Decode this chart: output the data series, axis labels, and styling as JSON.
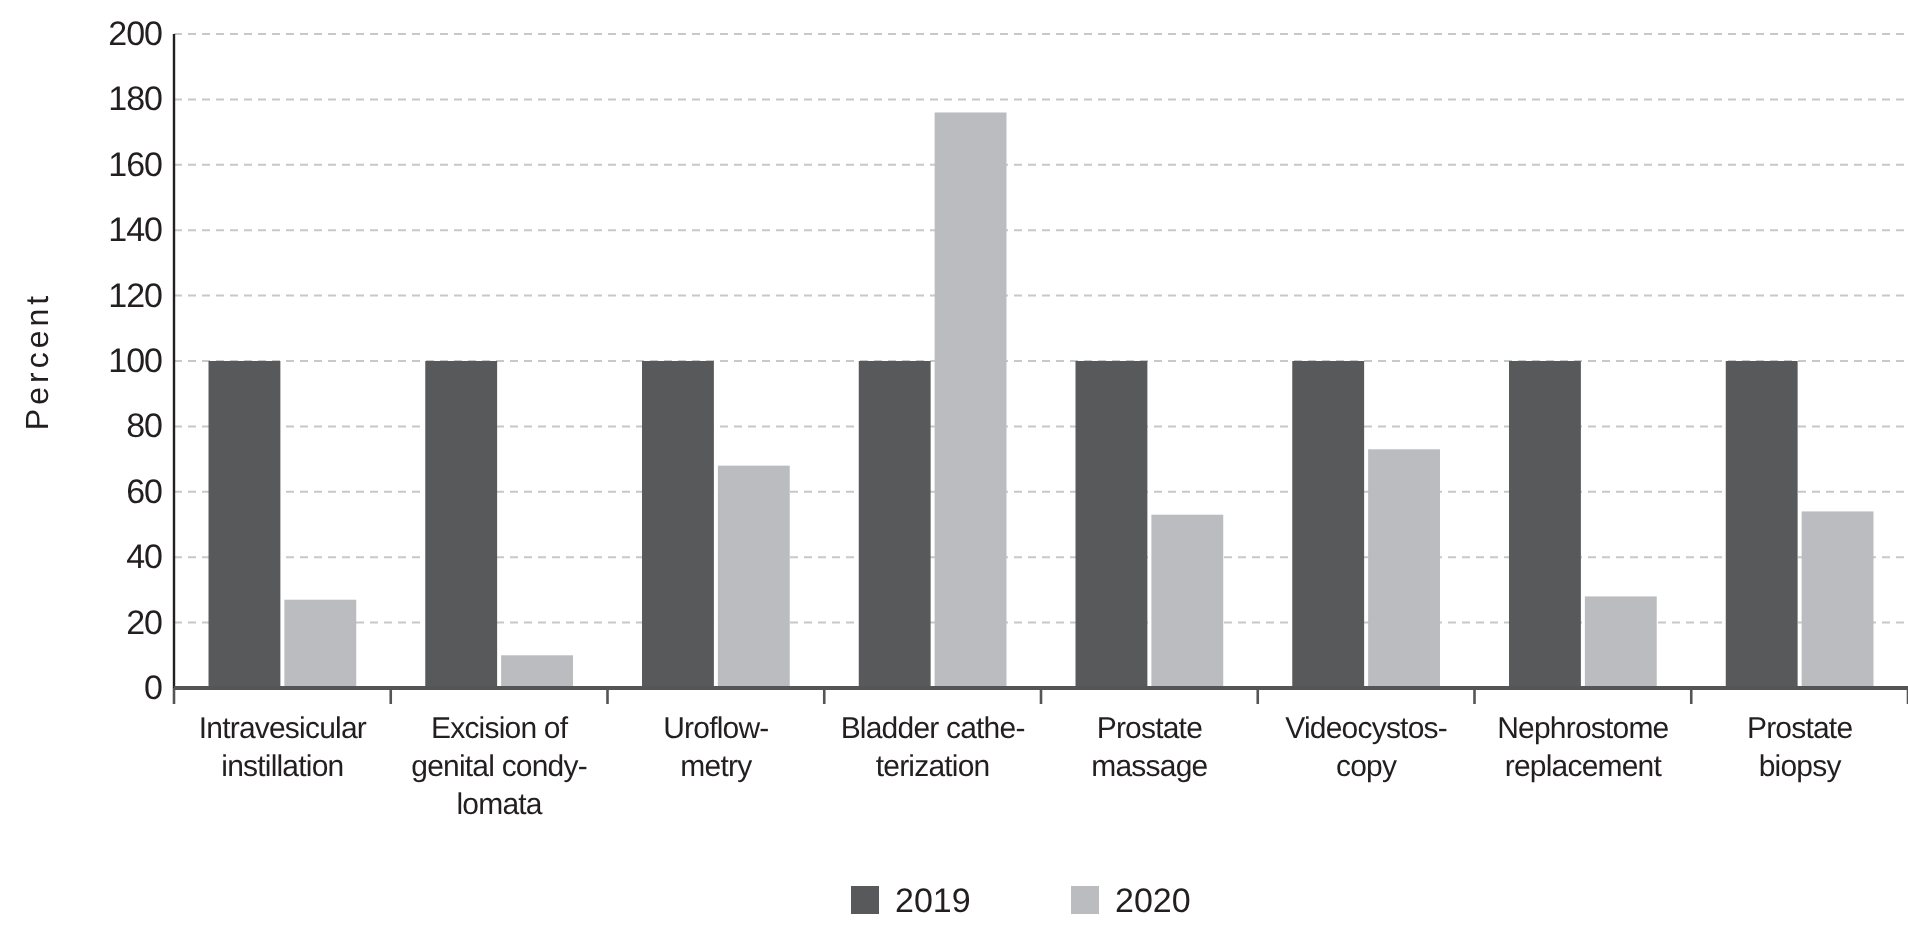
{
  "chart_data": {
    "type": "bar",
    "ylabel": "Percent",
    "categories": [
      "Intravesicular\ninstillation",
      "Excision of\ngenital condy-\nlomata",
      "Uroflow-\nmetry",
      "Bladder cathe-\nterization",
      "Prostate\nmassage",
      "Videocystos-\ncopy",
      "Nephrostome\nreplacement",
      "Prostate\nbiopsy"
    ],
    "series": [
      {
        "name": "2019",
        "color": "#58595b",
        "values": [
          100,
          100,
          100,
          100,
          100,
          100,
          100,
          100
        ]
      },
      {
        "name": "2020",
        "color": "#bbbcbf",
        "values": [
          27,
          10,
          68,
          176,
          53,
          73,
          28,
          54
        ]
      }
    ],
    "ylim": [
      0,
      200
    ],
    "yticks": [
      0,
      20,
      40,
      60,
      80,
      100,
      120,
      140,
      160,
      180,
      200
    ],
    "grid": "y",
    "legend": "bottom"
  }
}
